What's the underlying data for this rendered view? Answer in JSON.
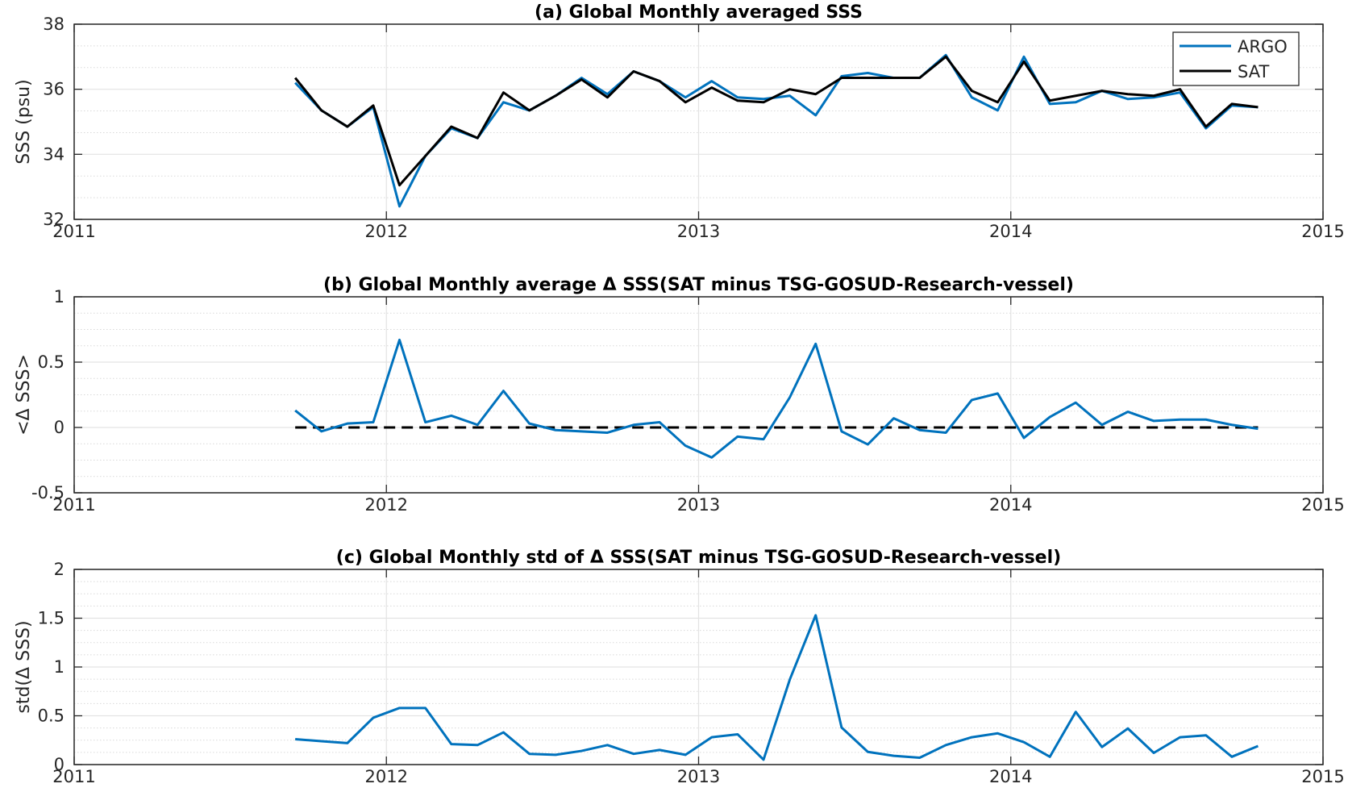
{
  "chart_data": [
    {
      "type": "line",
      "title": "(a) Global Monthly averaged SSS",
      "xlabel": "",
      "ylabel": "SSS (psu)",
      "xlim": [
        2011,
        2015
      ],
      "ylim": [
        32,
        38
      ],
      "xticks": [
        2011,
        2012,
        2013,
        2014,
        2015
      ],
      "xticklabels": [
        "2011",
        "2012",
        "2013",
        "2014",
        "2015"
      ],
      "yticks": [
        32,
        34,
        36,
        38
      ],
      "yticklabels": [
        "32",
        "34",
        "36",
        "38"
      ],
      "grid": true,
      "minor_grid": true,
      "legend": {
        "placement": "top-right",
        "entries": [
          "ARGO",
          "SAT"
        ]
      },
      "colors": {
        "ARGO": "#0072BD",
        "SAT": "#000000"
      },
      "x": [
        2011.708,
        2011.792,
        2011.875,
        2011.958,
        2012.042,
        2012.125,
        2012.208,
        2012.292,
        2012.375,
        2012.458,
        2012.542,
        2012.625,
        2012.708,
        2012.792,
        2012.875,
        2012.958,
        2013.042,
        2013.125,
        2013.208,
        2013.292,
        2013.375,
        2013.458,
        2013.542,
        2013.625,
        2013.708,
        2013.792,
        2013.875,
        2013.958,
        2014.042,
        2014.125,
        2014.208,
        2014.292,
        2014.375,
        2014.458,
        2014.542,
        2014.625,
        2014.708,
        2014.792
      ],
      "series": [
        {
          "name": "ARGO",
          "values": [
            36.2,
            35.35,
            34.85,
            35.45,
            32.4,
            33.95,
            34.8,
            34.5,
            35.6,
            35.35,
            35.8,
            36.35,
            35.85,
            36.55,
            36.25,
            35.75,
            36.25,
            35.75,
            35.7,
            35.8,
            35.2,
            36.4,
            36.5,
            36.35,
            36.35,
            37.05,
            35.75,
            35.35,
            37.0,
            35.55,
            35.6,
            35.95,
            35.7,
            35.75,
            35.9,
            34.8,
            35.5,
            35.45
          ]
        },
        {
          "name": "SAT",
          "values": [
            36.35,
            35.35,
            34.85,
            35.5,
            33.05,
            33.95,
            34.85,
            34.5,
            35.9,
            35.35,
            35.8,
            36.3,
            35.75,
            36.55,
            36.25,
            35.6,
            36.05,
            35.65,
            35.6,
            36.0,
            35.85,
            36.35,
            36.35,
            36.35,
            36.35,
            37.0,
            35.95,
            35.6,
            36.85,
            35.65,
            35.8,
            35.95,
            35.85,
            35.8,
            36.0,
            34.85,
            35.55,
            35.45
          ]
        }
      ]
    },
    {
      "type": "line",
      "title": "(b) Global Monthly average Δ SSS(SAT minus TSG-GOSUD-Research-vessel)",
      "xlabel": "",
      "ylabel": "<Δ SSS>",
      "xlim": [
        2011,
        2015
      ],
      "ylim": [
        -0.5,
        1
      ],
      "xticks": [
        2011,
        2012,
        2013,
        2014,
        2015
      ],
      "xticklabels": [
        "2011",
        "2012",
        "2013",
        "2014",
        "2015"
      ],
      "yticks": [
        -0.5,
        0,
        0.5,
        1
      ],
      "yticklabels": [
        "-0.5",
        "0",
        "0.5",
        "1"
      ],
      "grid": true,
      "minor_grid": true,
      "colors": {
        "series": "#0072BD",
        "zero_line": "#000000"
      },
      "reference_line": {
        "y": 0,
        "x_range": [
          2011.708,
          2014.792
        ],
        "style": "dashed"
      },
      "x": [
        2011.708,
        2011.792,
        2011.875,
        2011.958,
        2012.042,
        2012.125,
        2012.208,
        2012.292,
        2012.375,
        2012.458,
        2012.542,
        2012.625,
        2012.708,
        2012.792,
        2012.875,
        2012.958,
        2013.042,
        2013.125,
        2013.208,
        2013.292,
        2013.375,
        2013.458,
        2013.542,
        2013.625,
        2013.708,
        2013.792,
        2013.875,
        2013.958,
        2014.042,
        2014.125,
        2014.208,
        2014.292,
        2014.375,
        2014.458,
        2014.542,
        2014.625,
        2014.708,
        2014.792
      ],
      "series": [
        {
          "values": [
            0.13,
            -0.03,
            0.03,
            0.04,
            0.67,
            0.04,
            0.09,
            0.02,
            0.28,
            0.03,
            -0.02,
            -0.03,
            -0.04,
            0.02,
            0.04,
            -0.14,
            -0.23,
            -0.07,
            -0.09,
            0.23,
            0.64,
            -0.03,
            -0.13,
            0.07,
            -0.02,
            -0.04,
            0.21,
            0.26,
            -0.08,
            0.08,
            0.19,
            0.02,
            0.12,
            0.05,
            0.06,
            0.06,
            0.02,
            -0.01
          ]
        }
      ]
    },
    {
      "type": "line",
      "title": "(c) Global Monthly std of Δ SSS(SAT minus TSG-GOSUD-Research-vessel)",
      "xlabel": "",
      "ylabel": "std(Δ SSS)",
      "xlim": [
        2011,
        2015
      ],
      "ylim": [
        0,
        2
      ],
      "xticks": [
        2011,
        2012,
        2013,
        2014,
        2015
      ],
      "xticklabels": [
        "2011",
        "2012",
        "2013",
        "2014",
        "2015"
      ],
      "yticks": [
        0,
        0.5,
        1,
        1.5,
        2
      ],
      "yticklabels": [
        "0",
        "0.5",
        "1",
        "1.5",
        "2"
      ],
      "grid": true,
      "minor_grid": true,
      "colors": {
        "series": "#0072BD"
      },
      "x": [
        2011.708,
        2011.792,
        2011.875,
        2011.958,
        2012.042,
        2012.125,
        2012.208,
        2012.292,
        2012.375,
        2012.458,
        2012.542,
        2012.625,
        2012.708,
        2012.792,
        2012.875,
        2012.958,
        2013.042,
        2013.125,
        2013.208,
        2013.292,
        2013.375,
        2013.458,
        2013.542,
        2013.625,
        2013.708,
        2013.792,
        2013.875,
        2013.958,
        2014.042,
        2014.125,
        2014.208,
        2014.292,
        2014.375,
        2014.458,
        2014.542,
        2014.625,
        2014.708,
        2014.792
      ],
      "series": [
        {
          "values": [
            0.26,
            0.24,
            0.22,
            0.48,
            0.58,
            0.58,
            0.21,
            0.2,
            0.33,
            0.11,
            0.1,
            0.14,
            0.2,
            0.11,
            0.15,
            0.1,
            0.28,
            0.31,
            0.05,
            0.87,
            1.53,
            0.38,
            0.13,
            0.09,
            0.07,
            0.2,
            0.28,
            0.32,
            0.23,
            0.08,
            0.54,
            0.18,
            0.37,
            0.12,
            0.28,
            0.3,
            0.08,
            0.19
          ]
        }
      ]
    }
  ]
}
